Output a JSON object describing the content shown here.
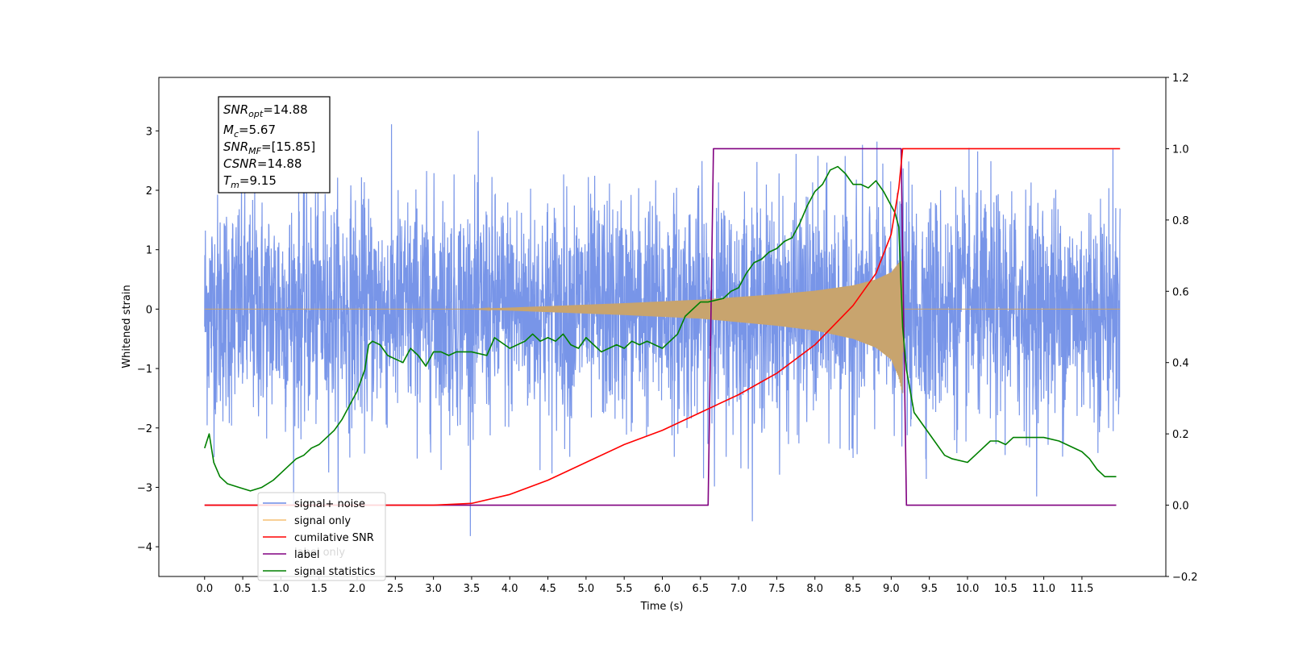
{
  "chart_data": {
    "type": "line",
    "xlabel": "Time (s)",
    "ylabel": "Whitened strain",
    "xlim": [
      -0.6,
      12.6
    ],
    "ylim": [
      -4.5,
      3.9
    ],
    "y2lim": [
      -0.2,
      1.2
    ],
    "grid": false,
    "x_ticks": [
      "0.0",
      "0.5",
      "1.0",
      "1.5",
      "2.0",
      "2.5",
      "3.0",
      "3.5",
      "4.0",
      "4.5",
      "5.0",
      "5.5",
      "6.0",
      "6.5",
      "7.0",
      "7.5",
      "8.0",
      "8.5",
      "9.0",
      "9.5",
      "10.0",
      "10.5",
      "11.0",
      "11.5"
    ],
    "y_ticks": [
      "−4",
      "−3",
      "−2",
      "−1",
      "0",
      "1",
      "2",
      "3"
    ],
    "y2_ticks": [
      "−0.2",
      "0.0",
      "0.2",
      "0.4",
      "0.6",
      "0.8",
      "1.0",
      "1.2"
    ],
    "annotation": {
      "lines": [
        {
          "base": "SNR",
          "sub": "opt",
          "value": "=14.88"
        },
        {
          "base": "M",
          "sub": "c",
          "value": "=5.67"
        },
        {
          "base": "SNR",
          "sub": "MF",
          "value": "=[15.85]"
        },
        {
          "base": "CSNR",
          "sub": "",
          "value": "=14.88"
        },
        {
          "base": "T",
          "sub": "m",
          "value": "=9.15"
        }
      ]
    },
    "legend": {
      "placement": "lower-left",
      "entries": [
        {
          "label": "signal+ noise",
          "color": "#6d8ce6"
        },
        {
          "label": "signal only",
          "color": "#f5bf72"
        },
        {
          "label": "cumilative SNR",
          "color": "#ff0000"
        },
        {
          "label": "label",
          "color": "#800080"
        },
        {
          "label": "signal statistics",
          "color": "#008000"
        }
      ],
      "hidden_text": [
        "label only"
      ]
    },
    "series": [
      {
        "name": "signal+ noise",
        "axis": "left",
        "color": "#6d8ce6",
        "x_range": [
          0.0,
          12.0
        ],
        "amplitude_min": -4.1,
        "amplitude_max": 3.35
      },
      {
        "name": "signal only",
        "axis": "left",
        "color": "#c8a46e",
        "x_range": [
          0.0,
          12.0
        ],
        "envelope_x": [
          0.0,
          3.5,
          4.5,
          5.5,
          6.5,
          7.5,
          8.0,
          8.5,
          8.8,
          9.0,
          9.1,
          9.15,
          9.16,
          12.0
        ],
        "envelope_upper": [
          0,
          0,
          0.05,
          0.1,
          0.16,
          0.25,
          0.31,
          0.4,
          0.5,
          0.62,
          0.78,
          0.82,
          0,
          0
        ],
        "envelope_lower": [
          0,
          0,
          -0.05,
          -0.1,
          -0.16,
          -0.28,
          -0.36,
          -0.5,
          -0.65,
          -0.85,
          -1.15,
          -1.45,
          0,
          0
        ]
      },
      {
        "name": "cumilative SNR",
        "axis": "right",
        "color": "#ff0000",
        "x": [
          0.0,
          2.0,
          3.0,
          3.5,
          4.0,
          4.5,
          5.0,
          5.5,
          6.0,
          6.5,
          7.0,
          7.5,
          8.0,
          8.5,
          8.8,
          9.0,
          9.1,
          9.15,
          12.0
        ],
        "values": [
          0.0,
          0.0,
          0.0,
          0.005,
          0.03,
          0.07,
          0.12,
          0.17,
          0.21,
          0.26,
          0.31,
          0.37,
          0.45,
          0.56,
          0.65,
          0.76,
          0.89,
          1.0,
          1.0
        ]
      },
      {
        "name": "label",
        "axis": "right",
        "color": "#800080",
        "x": [
          0.0,
          6.6,
          6.67,
          9.13,
          9.2,
          11.95
        ],
        "values": [
          0.0,
          0.0,
          1.0,
          1.0,
          0.0,
          0.0
        ]
      },
      {
        "name": "signal statistics",
        "axis": "right",
        "color": "#008000",
        "x": [
          0.0,
          0.06,
          0.12,
          0.2,
          0.3,
          0.45,
          0.6,
          0.75,
          0.9,
          1.0,
          1.1,
          1.2,
          1.3,
          1.4,
          1.5,
          1.6,
          1.7,
          1.8,
          1.9,
          2.0,
          2.1,
          2.15,
          2.2,
          2.3,
          2.4,
          2.5,
          2.6,
          2.7,
          2.8,
          2.9,
          3.0,
          3.1,
          3.2,
          3.3,
          3.5,
          3.7,
          3.8,
          4.0,
          4.2,
          4.3,
          4.4,
          4.5,
          4.6,
          4.7,
          4.8,
          4.9,
          5.0,
          5.1,
          5.2,
          5.3,
          5.4,
          5.5,
          5.6,
          5.7,
          5.8,
          6.0,
          6.2,
          6.3,
          6.4,
          6.5,
          6.6,
          6.8,
          6.9,
          7.0,
          7.1,
          7.2,
          7.3,
          7.4,
          7.5,
          7.6,
          7.7,
          7.8,
          7.9,
          8.0,
          8.1,
          8.2,
          8.3,
          8.4,
          8.5,
          8.6,
          8.7,
          8.8,
          8.9,
          9.0,
          9.05,
          9.1,
          9.15,
          9.2,
          9.3,
          9.4,
          9.5,
          9.7,
          9.8,
          10.0,
          10.1,
          10.2,
          10.3,
          10.4,
          10.5,
          10.6,
          10.8,
          11.0,
          11.2,
          11.5,
          11.6,
          11.7,
          11.8,
          11.95
        ],
        "values": [
          0.16,
          0.2,
          0.12,
          0.08,
          0.06,
          0.05,
          0.04,
          0.05,
          0.07,
          0.09,
          0.11,
          0.13,
          0.14,
          0.16,
          0.17,
          0.19,
          0.21,
          0.24,
          0.28,
          0.32,
          0.38,
          0.45,
          0.46,
          0.45,
          0.42,
          0.41,
          0.4,
          0.44,
          0.42,
          0.39,
          0.43,
          0.43,
          0.42,
          0.43,
          0.43,
          0.42,
          0.47,
          0.44,
          0.46,
          0.48,
          0.46,
          0.47,
          0.46,
          0.48,
          0.45,
          0.44,
          0.47,
          0.45,
          0.43,
          0.44,
          0.45,
          0.44,
          0.46,
          0.45,
          0.46,
          0.44,
          0.48,
          0.53,
          0.55,
          0.57,
          0.57,
          0.58,
          0.6,
          0.61,
          0.65,
          0.68,
          0.69,
          0.71,
          0.72,
          0.74,
          0.75,
          0.79,
          0.84,
          0.88,
          0.9,
          0.94,
          0.95,
          0.93,
          0.9,
          0.9,
          0.89,
          0.91,
          0.88,
          0.84,
          0.82,
          0.78,
          0.5,
          0.38,
          0.26,
          0.23,
          0.2,
          0.14,
          0.13,
          0.12,
          0.14,
          0.16,
          0.18,
          0.18,
          0.17,
          0.19,
          0.19,
          0.19,
          0.18,
          0.15,
          0.13,
          0.1,
          0.08,
          0.08
        ]
      }
    ]
  }
}
